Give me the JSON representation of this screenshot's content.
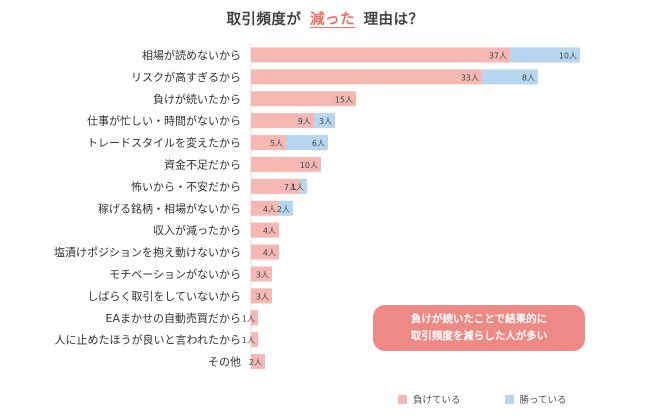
{
  "title": {
    "prefix": "取引頻度が",
    "accent": "減った",
    "suffix": "理由は？"
  },
  "callout": {
    "line1": "負けが続いたことで結果的に",
    "line2": "取引頻度を減らした人が多い"
  },
  "colors": {
    "lose": "#f6b8b3",
    "win": "#b6d6f2",
    "accent": "#e8726a",
    "callout_bg": "#ee8a85"
  },
  "chart_data": {
    "type": "bar",
    "orientation": "horizontal",
    "stacked": true,
    "categories": [
      "相場が読めないから",
      "リスクが高すぎるから",
      "負けが続いたから",
      "仕事が忙しい・時間がないから",
      "トレードスタイルを変えたから",
      "資金不足だから",
      "怖いから・不安だから",
      "稼げる銘柄・相場がないから",
      "収入が減ったから",
      "塩漬けポジションを抱え動けないから",
      "モチベーションがないから",
      "しばらく取引をしていないから",
      "EAまかせの自動売買だから",
      "人に止めたほうが良いと言われたから",
      "その他"
    ],
    "unit": "人",
    "series": [
      {
        "name": "負けている",
        "color": "#f6b8b3",
        "values": [
          37,
          33,
          15,
          9,
          5,
          10,
          7,
          4,
          4,
          4,
          3,
          3,
          1,
          1,
          2
        ]
      },
      {
        "name": "勝っている",
        "color": "#b6d6f2",
        "values": [
          10,
          8,
          0,
          3,
          6,
          0,
          1,
          2,
          0,
          0,
          0,
          0,
          0,
          0,
          0
        ]
      }
    ],
    "legend_position": "bottom-right",
    "grid": false
  }
}
